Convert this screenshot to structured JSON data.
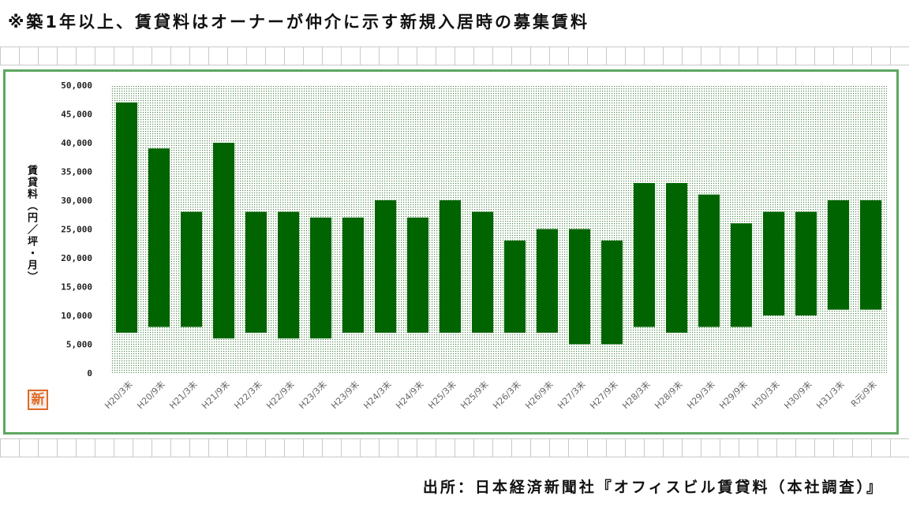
{
  "title": "※築1年以上、賃貸料はオーナーが仲介に示す新規入居時の募集賃料",
  "source": "出所：日本経済新聞社『オフィスビル賃貸料（本社調査）』",
  "badge": "新",
  "colors": {
    "bar": "#006400",
    "frame": "#5da860",
    "dot": "#4f8a4f"
  },
  "chart_data": {
    "type": "bar",
    "subtype": "floating-range",
    "ylabel": "賃貸料（円／坪・月）",
    "ylim": [
      0,
      50000
    ],
    "yticks": [
      "50,000",
      "45,000",
      "40,000",
      "35,000",
      "30,000",
      "25,000",
      "20,000",
      "15,000",
      "10,000",
      "5,000",
      "0"
    ],
    "categories": [
      "H20/3末",
      "H20/9末",
      "H21/3末",
      "H21/9末",
      "H22/3末",
      "H22/9末",
      "H23/3末",
      "H23/9末",
      "H24/3末",
      "H24/9末",
      "H25/3末",
      "H25/9末",
      "H26/3末",
      "H26/9末",
      "H27/3末",
      "H27/9末",
      "H28/3末",
      "H28/9末",
      "H29/3末",
      "H29/9末",
      "H30/3末",
      "H30/9末",
      "H31/3末",
      "R元/9末"
    ],
    "high": [
      47000,
      39000,
      28000,
      40000,
      28000,
      28000,
      27000,
      27000,
      30000,
      27000,
      30000,
      28000,
      23000,
      25000,
      25000,
      23000,
      33000,
      33000,
      31000,
      26000,
      28000,
      28000,
      30000,
      30000
    ],
    "low": [
      7000,
      8000,
      8000,
      6000,
      7000,
      6000,
      6000,
      7000,
      7000,
      7000,
      7000,
      7000,
      7000,
      7000,
      5000,
      5000,
      8000,
      7000,
      8000,
      8000,
      10000,
      10000,
      11000,
      11000
    ],
    "grid": false
  }
}
